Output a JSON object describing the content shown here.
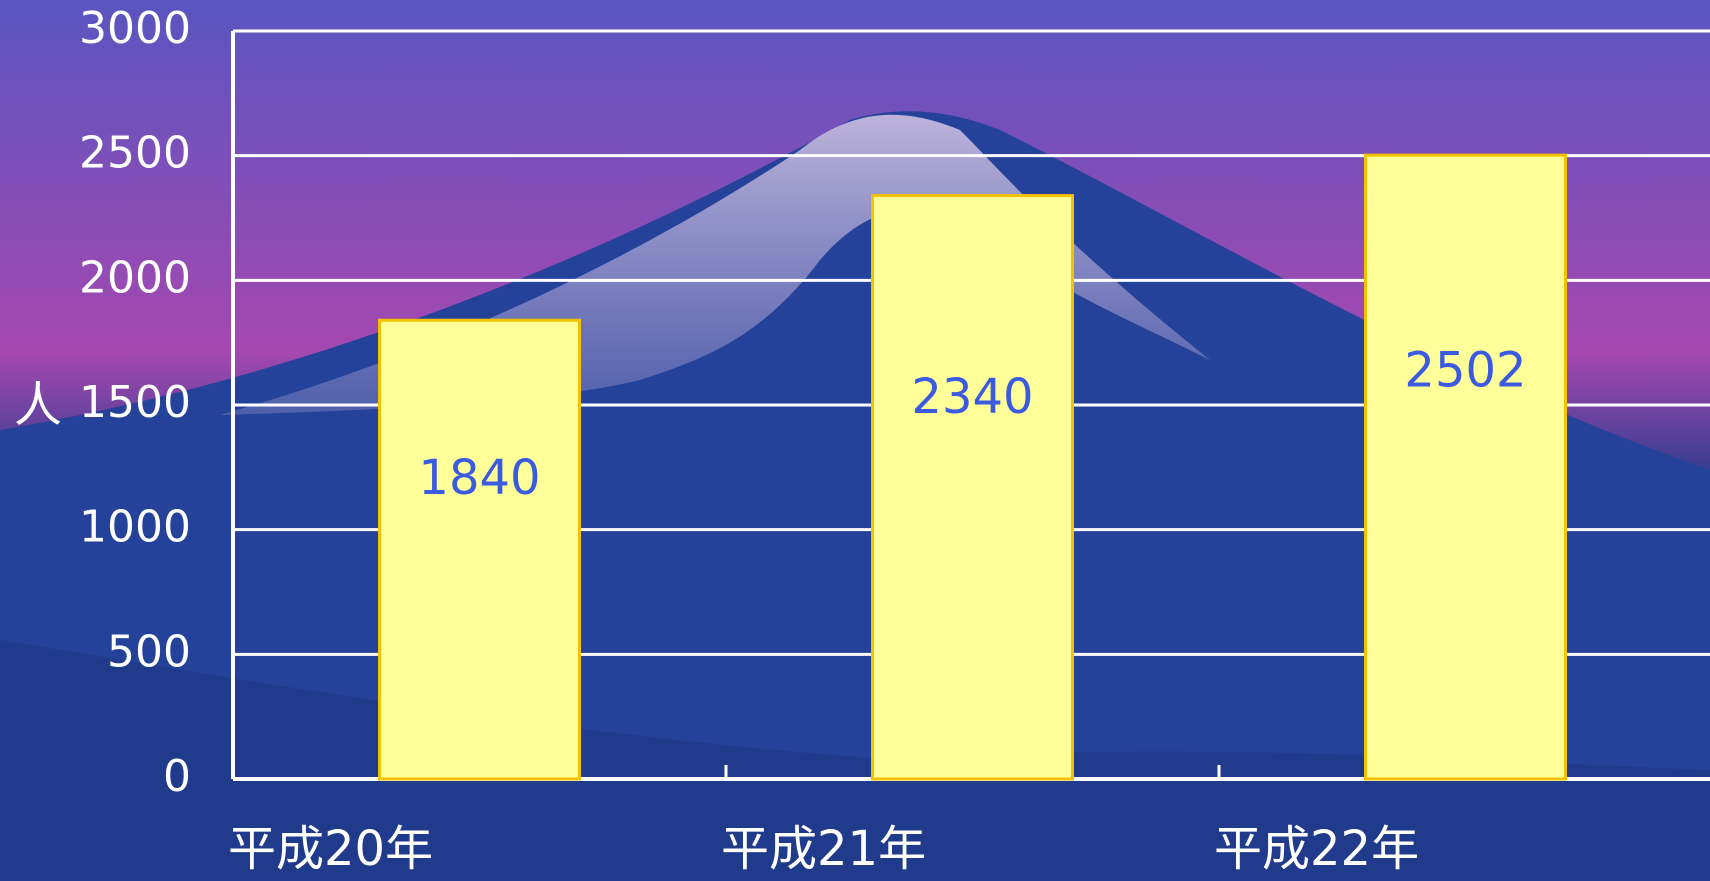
{
  "chart_data": {
    "type": "bar",
    "y_label": "人",
    "categories": [
      "平成20年",
      "平成21年",
      "平成22年"
    ],
    "values": [
      1840,
      2340,
      2502
    ],
    "color": "#ffff99",
    "edge_color": "#f2c200",
    "label_color": "#3a5ae0",
    "ylim": [
      0,
      3000
    ],
    "yticks": [
      0,
      500,
      1000,
      1500,
      2000,
      2500,
      3000
    ],
    "grid": true
  }
}
